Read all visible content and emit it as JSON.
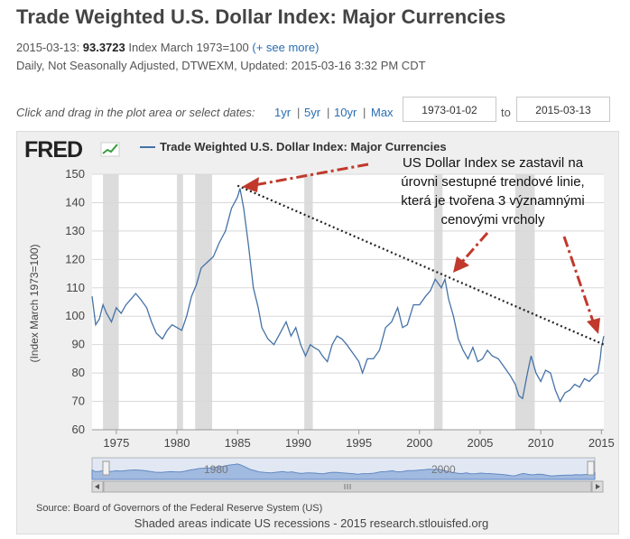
{
  "header": {
    "title": "Trade Weighted U.S. Dollar Index: Major Currencies",
    "date": "2015-03-13:",
    "value": "93.3723",
    "units": "Index March 1973=100",
    "see_more": "(+ see more)",
    "info_line": "Daily, Not Seasonally Adjusted, DTWEXM, Updated: 2015-03-16 3:32 PM CDT"
  },
  "controls": {
    "hint": "Click and drag in the plot area or select dates:",
    "ranges": [
      "1yr",
      "5yr",
      "10yr",
      "Max"
    ],
    "separator": "|",
    "start_date": "1973-01-02",
    "to_label": "to",
    "end_date": "2015-03-13"
  },
  "chart_data": {
    "type": "line",
    "logo": "FRED",
    "legend": "Trade Weighted U.S. Dollar Index: Major Currencies",
    "ylabel": "(Index March 1973=100)",
    "xlim": [
      1973.0,
      2015.2
    ],
    "ylim": [
      60,
      150
    ],
    "xticks": [
      "1975",
      "1980",
      "1985",
      "1990",
      "1995",
      "2000",
      "2005",
      "2010",
      "2015"
    ],
    "yticks": [
      "60",
      "70",
      "80",
      "90",
      "100",
      "110",
      "120",
      "130",
      "140",
      "150"
    ],
    "series": [
      {
        "color": "#4572a7",
        "x": [
          1973.0,
          1973.3,
          1973.6,
          1973.9,
          1974.2,
          1974.6,
          1975.0,
          1975.4,
          1975.8,
          1976.2,
          1976.6,
          1977.0,
          1977.5,
          1977.9,
          1978.3,
          1978.8,
          1979.2,
          1979.6,
          1980.0,
          1980.4,
          1980.8,
          1981.2,
          1981.6,
          1982.0,
          1982.5,
          1983.0,
          1983.5,
          1984.0,
          1984.5,
          1985.0,
          1985.2,
          1985.5,
          1985.9,
          1986.3,
          1986.7,
          1987.0,
          1987.5,
          1988.0,
          1988.5,
          1989.0,
          1989.4,
          1989.8,
          1990.2,
          1990.6,
          1991.0,
          1991.3,
          1991.7,
          1992.0,
          1992.4,
          1992.8,
          1993.2,
          1993.6,
          1994.0,
          1994.5,
          1995.0,
          1995.3,
          1995.7,
          1996.2,
          1996.7,
          1997.2,
          1997.7,
          1998.2,
          1998.6,
          1999.0,
          1999.5,
          2000.0,
          2000.5,
          2000.9,
          2001.3,
          2001.8,
          2002.1,
          2002.4,
          2002.8,
          2003.2,
          2003.6,
          2004.0,
          2004.4,
          2004.8,
          2005.2,
          2005.6,
          2006.0,
          2006.5,
          2007.0,
          2007.5,
          2007.9,
          2008.2,
          2008.5,
          2008.9,
          2009.2,
          2009.6,
          2010.0,
          2010.4,
          2010.8,
          2011.2,
          2011.6,
          2012.0,
          2012.4,
          2012.8,
          2013.2,
          2013.6,
          2014.0,
          2014.4,
          2014.7,
          2014.9,
          2015.0,
          2015.2
        ],
        "values": [
          107,
          97,
          99,
          104,
          101,
          98,
          103,
          101,
          104,
          106,
          108,
          106,
          103,
          98,
          94,
          92,
          95,
          97,
          96,
          95,
          100,
          107,
          111,
          117,
          119,
          121,
          126,
          130,
          138,
          142,
          145,
          138,
          125,
          110,
          103,
          96,
          92,
          90,
          94,
          98,
          93,
          96,
          90,
          86,
          90,
          89,
          88,
          86,
          84,
          90,
          93,
          92,
          90,
          87,
          84,
          80,
          85,
          85,
          88,
          96,
          98,
          103,
          96,
          97,
          104,
          104,
          107,
          109,
          113,
          110,
          113,
          106,
          100,
          92,
          88,
          85,
          89,
          84,
          85,
          88,
          86,
          85,
          82,
          79,
          76,
          72,
          71,
          80,
          86,
          80,
          77,
          81,
          80,
          74,
          70,
          73,
          74,
          76,
          75,
          78,
          77,
          79,
          80,
          85,
          89,
          93
        ]
      }
    ],
    "recessions": [
      [
        1973.9,
        1975.2
      ],
      [
        1980.0,
        1980.5
      ],
      [
        1981.5,
        1982.9
      ],
      [
        1990.5,
        1991.2
      ],
      [
        2001.2,
        2001.9
      ],
      [
        2007.9,
        2009.5
      ]
    ],
    "trendline": {
      "start": [
        1985.0,
        146
      ],
      "end": [
        2015.2,
        90
      ]
    },
    "annotation": "US Dollar Index se zastavil na úrovni sestupné trendové linie, která je tvořena 3 významnými cenovými vrcholy",
    "annotation_lines": [
      "US Dollar Index se zastavil na",
      "úrovni sestupné trendové linie,",
      "která je tvořena 3 významnými",
      "cenovými vrcholy"
    ],
    "navigator": {
      "labels": [
        "1980",
        "2000"
      ]
    },
    "source": "Source: Board of Governors of the Federal Reserve System (US)",
    "footer": "Shaded areas indicate US recessions - 2015 research.stlouisfed.org"
  },
  "colors": {
    "series": "#4572a7",
    "annotation": "#c0392b",
    "recession": "#dcdcdc"
  }
}
